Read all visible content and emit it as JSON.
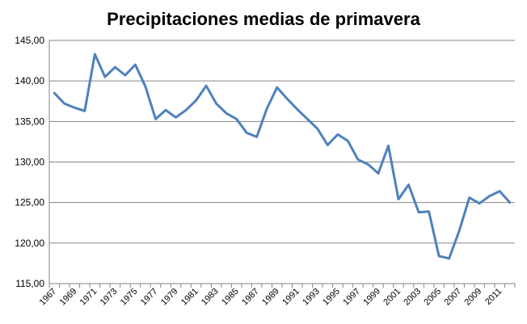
{
  "chart_data": {
    "type": "line",
    "title": "Precipitaciones medias de primavera",
    "xlabel": "",
    "ylabel": "",
    "ylim": [
      115,
      145
    ],
    "yticks": [
      "115,00",
      "120,00",
      "125,00",
      "130,00",
      "135,00",
      "140,00",
      "145,00"
    ],
    "xticks": [
      "1967",
      "1969",
      "1971",
      "1973",
      "1975",
      "1977",
      "1979",
      "1981",
      "1983",
      "1985",
      "1987",
      "1989",
      "1991",
      "1993",
      "1995",
      "1997",
      "1999",
      "2001",
      "2003",
      "2005",
      "2007",
      "2009",
      "2011"
    ],
    "x": [
      1967,
      1968,
      1969,
      1970,
      1971,
      1972,
      1973,
      1974,
      1975,
      1976,
      1977,
      1978,
      1979,
      1980,
      1981,
      1982,
      1983,
      1984,
      1985,
      1986,
      1987,
      1988,
      1989,
      1990,
      1991,
      1992,
      1993,
      1994,
      1995,
      1996,
      1997,
      1998,
      1999,
      2000,
      2001,
      2002,
      2003,
      2004,
      2005,
      2006,
      2007,
      2008,
      2009,
      2010,
      2011,
      2012
    ],
    "series": [
      {
        "color": "#4f81bd",
        "values": [
          138.5,
          137.2,
          136.7,
          136.3,
          143.3,
          140.5,
          141.7,
          140.7,
          142.0,
          139.3,
          135.3,
          136.4,
          135.5,
          136.4,
          137.6,
          139.4,
          137.2,
          136.0,
          135.3,
          133.6,
          133.1,
          136.6,
          139.2,
          137.8,
          136.5,
          135.3,
          134.1,
          132.1,
          133.4,
          132.6,
          130.3,
          129.7,
          128.6,
          132.0,
          125.4,
          127.2,
          123.8,
          123.9,
          118.4,
          118.1,
          121.5,
          125.6,
          124.9,
          125.8,
          126.4,
          125.0
        ]
      }
    ],
    "grid": true,
    "legend": "none"
  }
}
